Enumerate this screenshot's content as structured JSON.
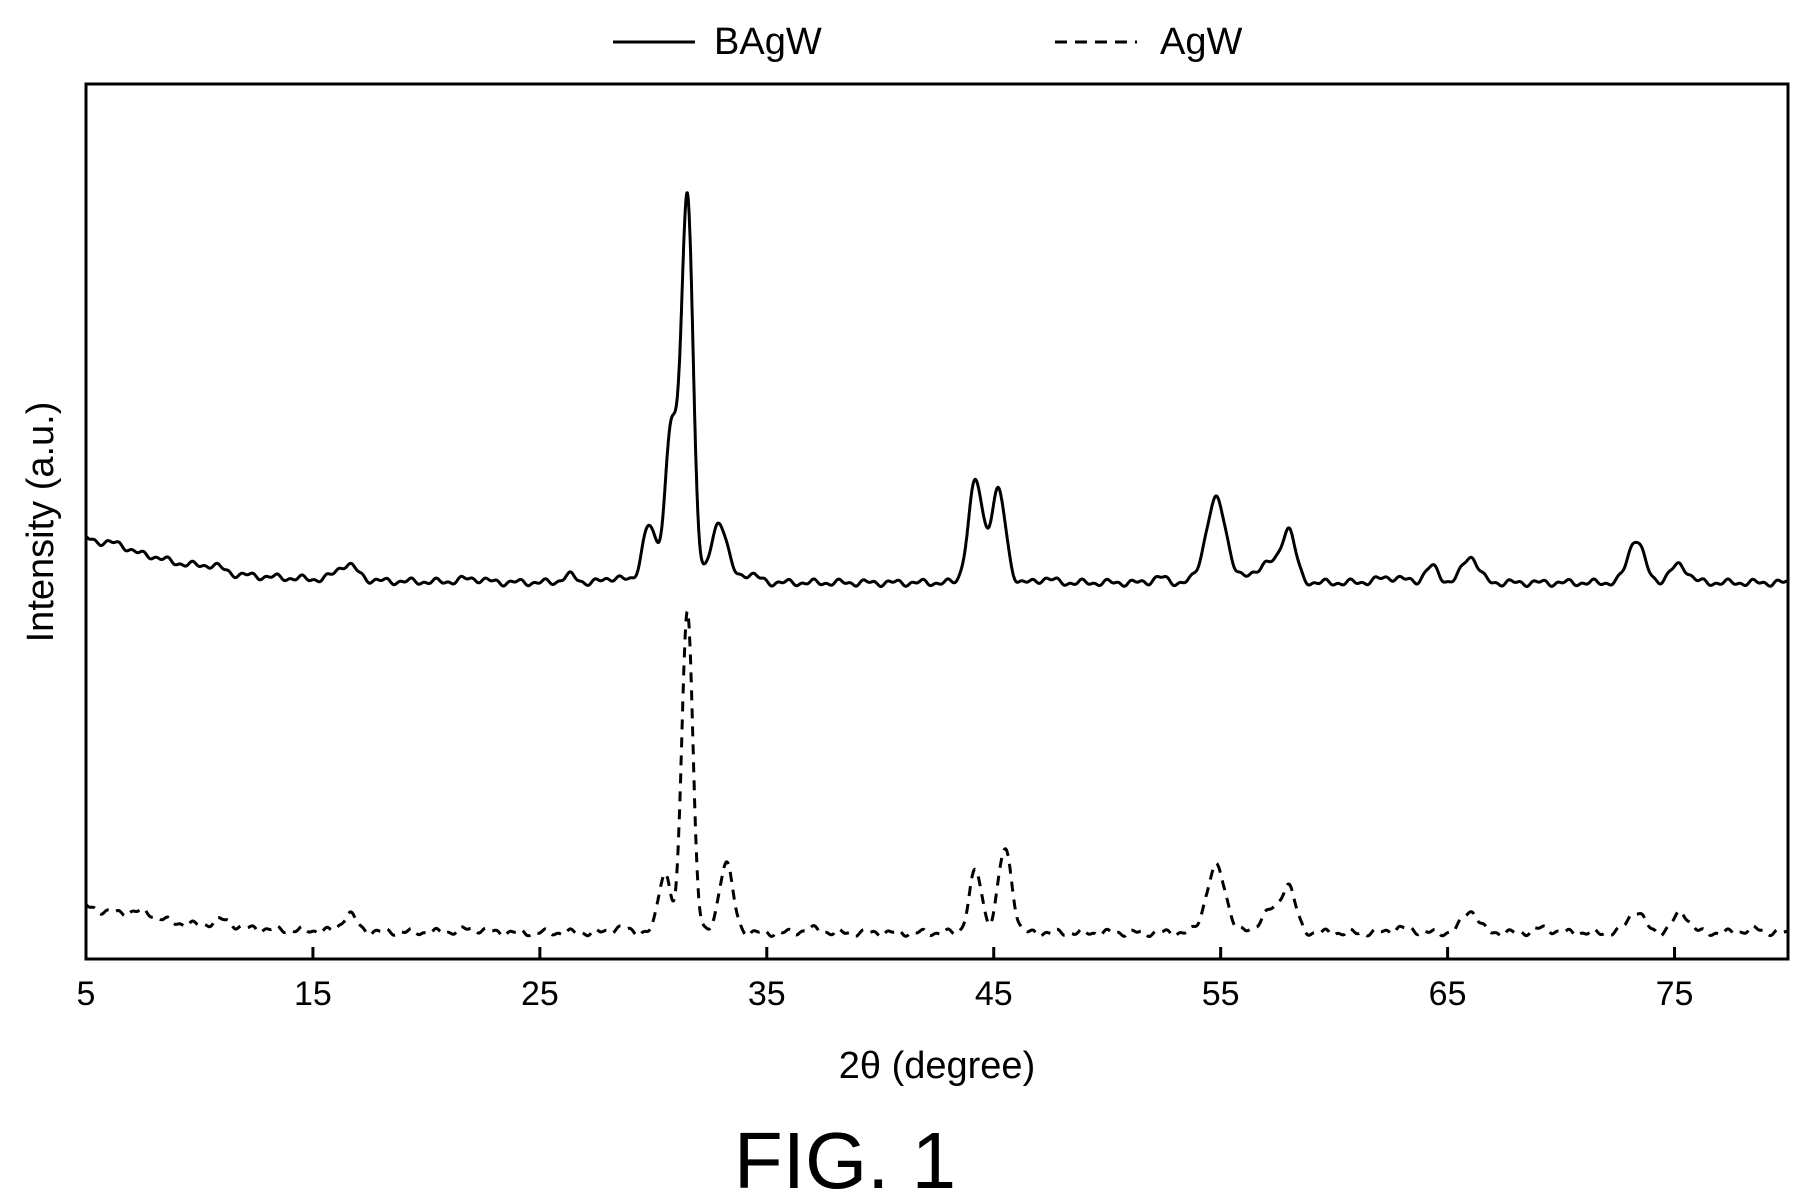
{
  "figure_caption": "FIG. 1",
  "chart_data": {
    "type": "line",
    "xlabel": "2θ (degree)",
    "ylabel": "Intensity (a.u.)",
    "xlim": [
      5,
      80
    ],
    "ylim": [
      0,
      100
    ],
    "x_ticks": [
      5,
      15,
      25,
      35,
      45,
      55,
      65,
      75
    ],
    "y_ticks": [],
    "grid": false,
    "legend_position": "top-center",
    "series": [
      {
        "name": "BAgW",
        "line_style": "solid",
        "color": "#000000",
        "baseline": 43,
        "start_level": 48,
        "bumps": [
          [
            6.5,
            0.9,
            0.7
          ],
          [
            8.2,
            0.6,
            0.5
          ],
          [
            9.5,
            0.5,
            0.4
          ],
          [
            10.6,
            0.8,
            0.4
          ],
          [
            16.5,
            1.8,
            0.45
          ],
          [
            22,
            0.4,
            0.5
          ],
          [
            26.3,
            0.8,
            0.3
          ],
          [
            28.3,
            0.6,
            0.4
          ],
          [
            29.8,
            6.5,
            0.3
          ],
          [
            30.8,
            18,
            0.28
          ],
          [
            31.5,
            44,
            0.25
          ],
          [
            32.9,
            7,
            0.35
          ],
          [
            34.2,
            1,
            0.4
          ],
          [
            44.2,
            11.5,
            0.32
          ],
          [
            45.2,
            10.5,
            0.32
          ],
          [
            47.3,
            0.5,
            0.3
          ],
          [
            52.3,
            0.6,
            0.3
          ],
          [
            54.8,
            9.5,
            0.45
          ],
          [
            57.1,
            2.2,
            0.6
          ],
          [
            58,
            5.5,
            0.3
          ],
          [
            62.5,
            0.6,
            0.6
          ],
          [
            64.3,
            1.8,
            0.3
          ],
          [
            66,
            3,
            0.35
          ],
          [
            73.3,
            5,
            0.35
          ],
          [
            75.2,
            2,
            0.4
          ]
        ]
      },
      {
        "name": "AgW",
        "line_style": "dashed",
        "color": "#000000",
        "baseline": 3,
        "start_level": 6,
        "bumps": [
          [
            7.5,
            0.8,
            0.6
          ],
          [
            11,
            0.8,
            0.4
          ],
          [
            16.6,
            2,
            0.3
          ],
          [
            22,
            0.4,
            0.5
          ],
          [
            28.5,
            0.5,
            0.4
          ],
          [
            30.5,
            7,
            0.26
          ],
          [
            31.5,
            37,
            0.24
          ],
          [
            33.2,
            8,
            0.3
          ],
          [
            37,
            0.4,
            0.4
          ],
          [
            44.2,
            7,
            0.28
          ],
          [
            45.5,
            9.5,
            0.3
          ],
          [
            54.8,
            7.5,
            0.42
          ],
          [
            57.2,
            2.5,
            0.45
          ],
          [
            58,
            5,
            0.3
          ],
          [
            63,
            0.5,
            0.5
          ],
          [
            66,
            2.5,
            0.35
          ],
          [
            69.2,
            0.5,
            0.4
          ],
          [
            73.3,
            2.5,
            0.35
          ],
          [
            75.3,
            2.3,
            0.35
          ],
          [
            78.5,
            0.4,
            0.4
          ]
        ]
      }
    ]
  }
}
